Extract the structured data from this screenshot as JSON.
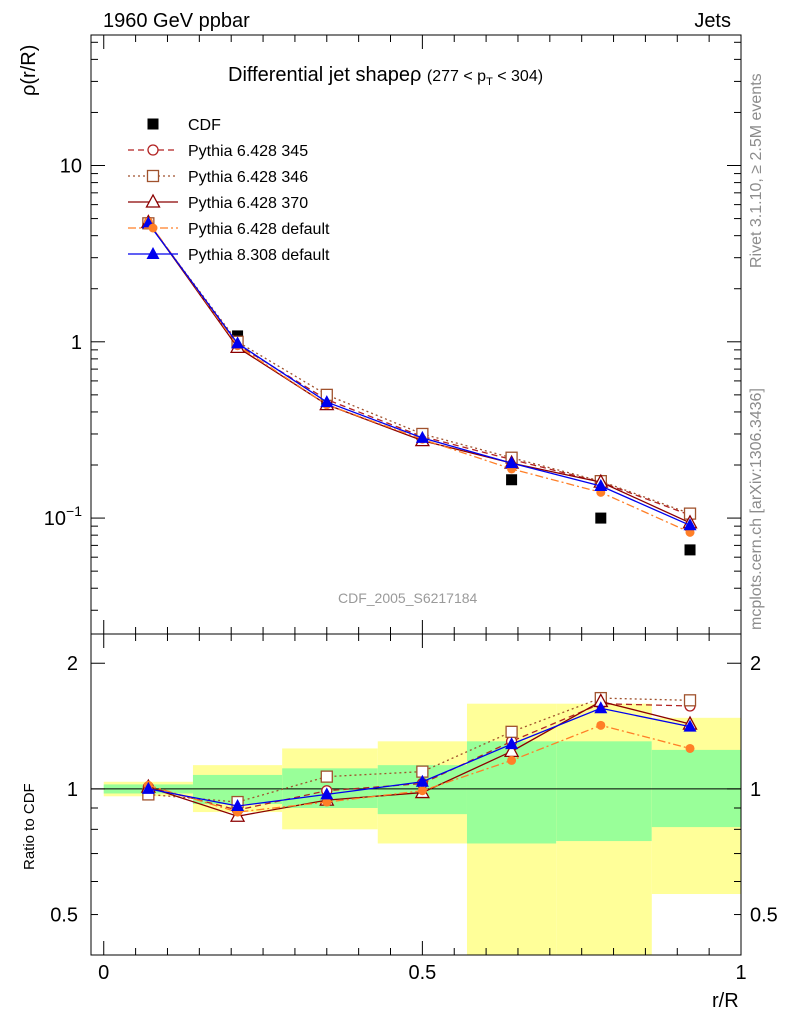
{
  "header": {
    "left": "1960 GeV ppbar",
    "right": "Jets"
  },
  "side_texts": {
    "rivet": "Rivet 3.1.10, ≥ 2.5M events",
    "mcplots": "mcplots.cern.ch [arXiv:1306.3436]"
  },
  "watermark": "CDF_2005_S6217184",
  "chart_data": [
    {
      "type": "line",
      "title": "Differential jet shapeρ (277 < p_T < 304)",
      "title_main": "Differential jet shapeρ",
      "title_range_pre": "(277 < p",
      "title_range_sub": "T",
      "title_range_post": " < 304)",
      "ylabel": "ρ(r/R)",
      "yscale": "log",
      "ylim": [
        0.022,
        55
      ],
      "xlim": [
        -0.02,
        1.0
      ],
      "yticks": [
        {
          "value": 10,
          "label": "10"
        },
        {
          "value": 1,
          "label": "1"
        },
        {
          "value": 0.1,
          "label": "10^-1"
        }
      ],
      "x": [
        0.07,
        0.21,
        0.35,
        0.5,
        0.64,
        0.78,
        0.92
      ],
      "legend_position": "top-left",
      "series": [
        {
          "name": "CDF",
          "color": "#000000",
          "marker": "square-filled",
          "line": "none",
          "values": [
            4.7,
            1.08,
            0.47,
            0.28,
            0.165,
            0.1,
            0.066
          ]
        },
        {
          "name": "Pythia 6.428 345",
          "color": "#b22222",
          "marker": "circle-open",
          "line": "dashed",
          "values": [
            4.75,
            0.96,
            0.47,
            0.29,
            0.215,
            0.16,
            0.104
          ]
        },
        {
          "name": "Pythia 6.428 346",
          "color": "#a0522d",
          "marker": "square-open",
          "line": "dotted",
          "values": [
            4.7,
            1.0,
            0.5,
            0.3,
            0.22,
            0.162,
            0.106
          ]
        },
        {
          "name": "Pythia 6.428 370",
          "color": "#8b0000",
          "marker": "triangle-open",
          "line": "solid",
          "values": [
            4.75,
            0.93,
            0.44,
            0.275,
            0.205,
            0.16,
            0.094
          ]
        },
        {
          "name": "Pythia 6.428 default",
          "color": "#ff7f27",
          "marker": "circle-filled",
          "line": "dashdot",
          "values": [
            4.8,
            0.95,
            0.44,
            0.28,
            0.19,
            0.14,
            0.083
          ]
        },
        {
          "name": "Pythia 8.308 default",
          "color": "#0000ee",
          "marker": "triangle-filled",
          "line": "solid",
          "values": [
            4.7,
            0.98,
            0.455,
            0.285,
            0.205,
            0.152,
            0.091
          ]
        }
      ]
    },
    {
      "type": "line",
      "xlabel": "r/R",
      "ylabel": "Ratio to CDF",
      "yscale": "log",
      "ylim": [
        0.4,
        2.35
      ],
      "xlim": [
        -0.02,
        1.0
      ],
      "xticks": [
        {
          "value": 0,
          "label": "0"
        },
        {
          "value": 0.5,
          "label": "0.5"
        },
        {
          "value": 1,
          "label": "1"
        }
      ],
      "yticks": [
        {
          "value": 2,
          "label": "2"
        },
        {
          "value": 1,
          "label": "1"
        },
        {
          "value": 0.5,
          "label": "0.5"
        }
      ],
      "reference_line": 1,
      "uncertainty_bands": [
        {
          "x0": 0.0,
          "x1": 0.14,
          "yellow": [
            0.96,
            1.04
          ],
          "green": [
            0.975,
            1.025
          ]
        },
        {
          "x0": 0.14,
          "x1": 0.28,
          "yellow": [
            0.88,
            1.14
          ],
          "green": [
            0.92,
            1.08
          ]
        },
        {
          "x0": 0.28,
          "x1": 0.43,
          "yellow": [
            0.8,
            1.25
          ],
          "green": [
            0.9,
            1.12
          ]
        },
        {
          "x0": 0.43,
          "x1": 0.57,
          "yellow": [
            0.74,
            1.3
          ],
          "green": [
            0.87,
            1.14
          ]
        },
        {
          "x0": 0.57,
          "x1": 0.71,
          "yellow": [
            0.38,
            1.6
          ],
          "green": [
            0.74,
            1.3
          ]
        },
        {
          "x0": 0.71,
          "x1": 0.86,
          "yellow": [
            0.4,
            1.6
          ],
          "green": [
            0.75,
            1.3
          ]
        },
        {
          "x0": 0.86,
          "x1": 1.0,
          "yellow": [
            0.56,
            1.48
          ],
          "green": [
            0.81,
            1.24
          ]
        }
      ],
      "x": [
        0.07,
        0.21,
        0.35,
        0.5,
        0.64,
        0.78,
        0.92
      ],
      "series": [
        {
          "name": "Pythia 6.428 345",
          "values": [
            1.01,
            0.89,
            0.99,
            1.03,
            1.3,
            1.6,
            1.58
          ]
        },
        {
          "name": "Pythia 6.428 346",
          "values": [
            0.97,
            0.93,
            1.07,
            1.1,
            1.37,
            1.65,
            1.63
          ]
        },
        {
          "name": "Pythia 6.428 370",
          "values": [
            1.01,
            0.86,
            0.94,
            0.98,
            1.23,
            1.62,
            1.43
          ]
        },
        {
          "name": "Pythia 6.428 default",
          "values": [
            1.02,
            0.88,
            0.93,
            0.99,
            1.17,
            1.42,
            1.25
          ]
        },
        {
          "name": "Pythia 8.308 default",
          "values": [
            1.0,
            0.91,
            0.97,
            1.04,
            1.28,
            1.56,
            1.41
          ]
        }
      ]
    }
  ]
}
